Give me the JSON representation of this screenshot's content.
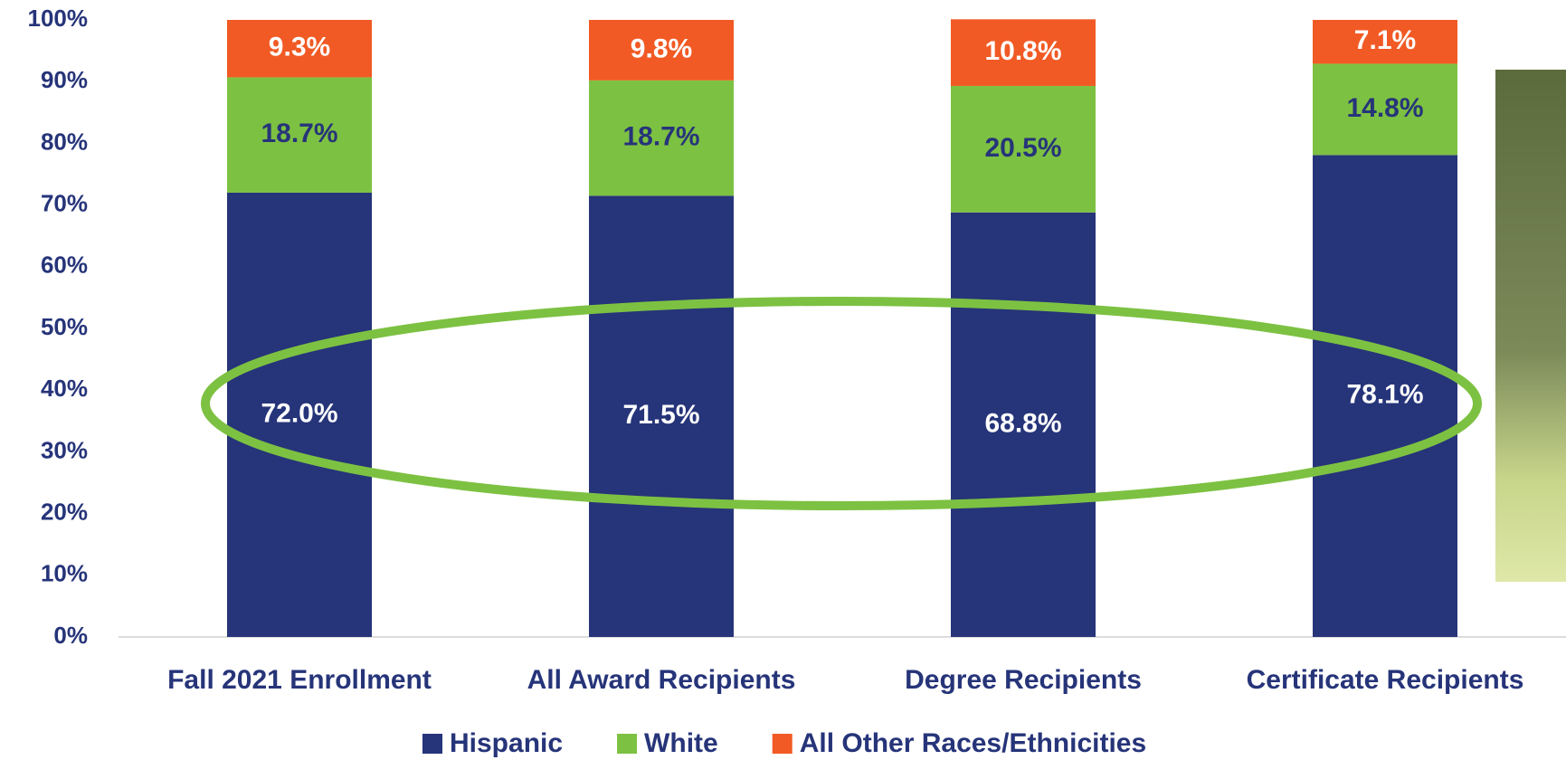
{
  "chart_data": {
    "type": "stacked_bar",
    "categories": [
      "Fall 2021 Enrollment",
      "All Award Recipients",
      "Degree Recipients",
      "Certificate Recipients"
    ],
    "series": [
      {
        "name": "Hispanic",
        "color": "#263479",
        "label_color": "#ffffff",
        "values": [
          72.0,
          71.5,
          68.8,
          78.1
        ],
        "value_labels": [
          "72.0%",
          "71.5%",
          "68.8%",
          "78.1%"
        ]
      },
      {
        "name": "White",
        "color": "#7dc142",
        "label_color": "#263479",
        "values": [
          18.7,
          18.7,
          20.5,
          14.8
        ],
        "value_labels": [
          "18.7%",
          "18.7%",
          "20.5%",
          "14.8%"
        ]
      },
      {
        "name": "All Other Races/Ethnicities",
        "color": "#f15a24",
        "label_color": "#ffffff",
        "values": [
          9.3,
          9.8,
          10.8,
          7.1
        ],
        "value_labels": [
          "9.3%",
          "9.8%",
          "10.8%",
          "7.1%"
        ]
      }
    ],
    "ylim": [
      0,
      100
    ],
    "yticks": [
      {
        "value": 0,
        "label": "0%"
      },
      {
        "value": 10,
        "label": "10%"
      },
      {
        "value": 20,
        "label": "20%"
      },
      {
        "value": 30,
        "label": "30%"
      },
      {
        "value": 40,
        "label": "40%"
      },
      {
        "value": 50,
        "label": "50%"
      },
      {
        "value": 60,
        "label": "60%"
      },
      {
        "value": 70,
        "label": "70%"
      },
      {
        "value": 80,
        "label": "80%"
      },
      {
        "value": 90,
        "label": "90%"
      },
      {
        "value": 100,
        "label": "100%"
      }
    ],
    "legend": "bottom"
  }
}
